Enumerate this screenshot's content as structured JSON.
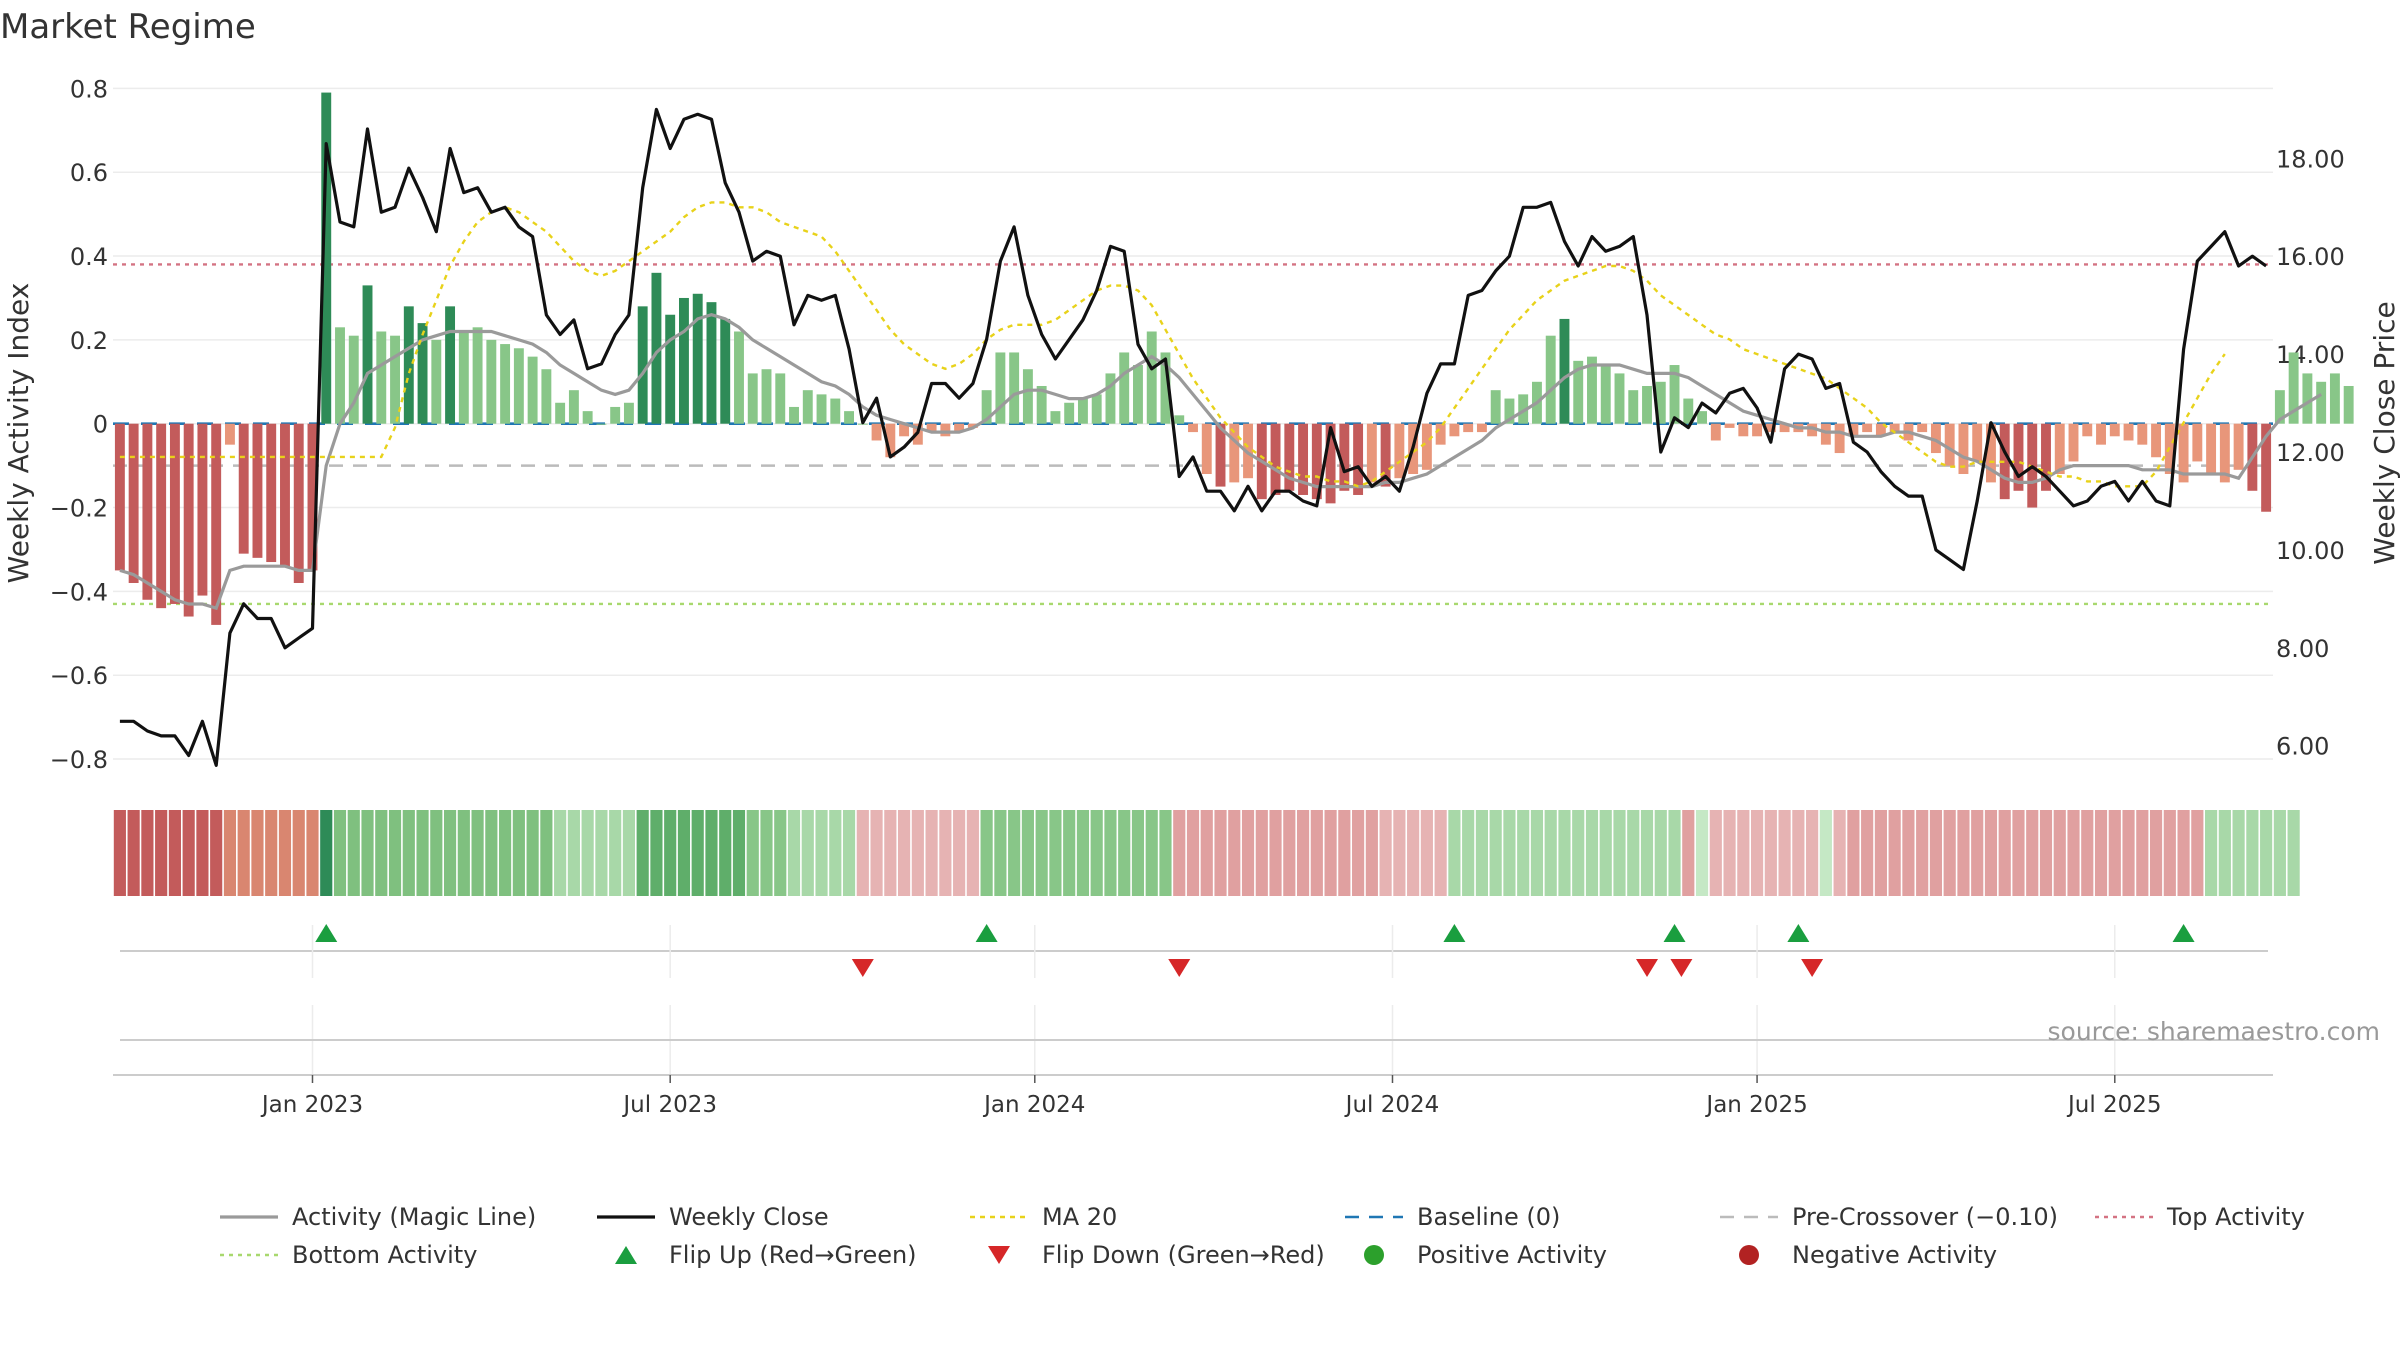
{
  "chart_data": {
    "type": "bar",
    "title": "Market Regime",
    "ylabel_left": "Weekly Activity Index",
    "ylabel_right": "Weekly Close Price",
    "ylim_left": [
      -0.85,
      0.82
    ],
    "ylim_right": [
      5.3,
      19.6
    ],
    "yticks_left": [
      {
        "value": 0.8,
        "label": "0.8"
      },
      {
        "value": 0.6,
        "label": "0.6"
      },
      {
        "value": 0.4,
        "label": "0.4"
      },
      {
        "value": 0.2,
        "label": "0.2"
      },
      {
        "value": 0,
        "label": "0"
      },
      {
        "value": -0.2,
        "label": "−0.2"
      },
      {
        "value": -0.4,
        "label": "−0.4"
      },
      {
        "value": -0.6,
        "label": "−0.6"
      },
      {
        "value": -0.8,
        "label": "−0.8"
      }
    ],
    "yticks_right": [
      {
        "value": 18,
        "label": "18.00"
      },
      {
        "value": 16,
        "label": "16.00"
      },
      {
        "value": 14,
        "label": "14.00"
      },
      {
        "value": 12,
        "label": "12.00"
      },
      {
        "value": 10,
        "label": "10.00"
      },
      {
        "value": 8,
        "label": "8.00"
      },
      {
        "value": 6,
        "label": "6.00"
      }
    ],
    "x_week_range": [
      0,
      157
    ],
    "xticks": [
      {
        "week": 14.5,
        "label": "Jan 2023"
      },
      {
        "week": 40.5,
        "label": "Jul 2023"
      },
      {
        "week": 67,
        "label": "Jan 2024"
      },
      {
        "week": 93,
        "label": "Jul 2024"
      },
      {
        "week": 119.5,
        "label": "Jan 2025"
      },
      {
        "week": 145.5,
        "label": "Jul 2025"
      }
    ],
    "weekly_activity": [
      -0.35,
      -0.38,
      -0.42,
      -0.44,
      -0.43,
      -0.46,
      -0.41,
      -0.48,
      -0.05,
      -0.31,
      -0.32,
      -0.33,
      -0.34,
      -0.38,
      -0.35,
      0.79,
      0.23,
      0.21,
      0.33,
      0.22,
      0.21,
      0.28,
      0.24,
      0.2,
      0.28,
      0.22,
      0.23,
      0.2,
      0.19,
      0.18,
      0.16,
      0.13,
      0.05,
      0.08,
      0.03,
      0,
      0.04,
      0.05,
      0.28,
      0.36,
      0.26,
      0.3,
      0.31,
      0.29,
      0.25,
      0.22,
      0.12,
      0.13,
      0.12,
      0.04,
      0.08,
      0.07,
      0.06,
      0.03,
      0,
      -0.04,
      -0.08,
      -0.03,
      -0.05,
      -0.02,
      -0.03,
      -0.02,
      -0.01,
      0.08,
      0.17,
      0.17,
      0.13,
      0.09,
      0.03,
      0.05,
      0.06,
      0.07,
      0.12,
      0.17,
      0.14,
      0.22,
      0.17,
      0.02,
      -0.02,
      -0.12,
      -0.15,
      -0.14,
      -0.13,
      -0.18,
      -0.17,
      -0.16,
      -0.17,
      -0.18,
      -0.19,
      -0.16,
      -0.17,
      -0.14,
      -0.15,
      -0.13,
      -0.12,
      -0.11,
      -0.05,
      -0.03,
      -0.02,
      -0.02,
      0.08,
      0.06,
      0.07,
      0.1,
      0.21,
      0.25,
      0.15,
      0.16,
      0.14,
      0.12,
      0.08,
      0.09,
      0.1,
      0.14,
      0.06,
      0.03,
      -0.04,
      -0.01,
      -0.03,
      -0.03,
      -0.02,
      -0.02,
      -0.02,
      -0.03,
      -0.05,
      -0.07,
      -0.03,
      -0.02,
      -0.03,
      -0.02,
      -0.04,
      -0.02,
      -0.07,
      -0.1,
      -0.12,
      -0.09,
      -0.14,
      -0.18,
      -0.16,
      -0.2,
      -0.16,
      -0.12,
      -0.09,
      -0.03,
      -0.05,
      -0.03,
      -0.04,
      -0.05,
      -0.08,
      -0.12,
      -0.14,
      -0.09,
      -0.12,
      -0.14,
      -0.11,
      -0.16,
      -0.21,
      0.08,
      0.17,
      0.12,
      0.1,
      0.12,
      0.09
    ],
    "magic_line": [
      -0.35,
      -0.36,
      -0.38,
      -0.4,
      -0.42,
      -0.43,
      -0.43,
      -0.44,
      -0.35,
      -0.34,
      -0.34,
      -0.34,
      -0.34,
      -0.35,
      -0.35,
      -0.1,
      0,
      0.05,
      0.12,
      0.14,
      0.16,
      0.18,
      0.2,
      0.21,
      0.22,
      0.22,
      0.22,
      0.22,
      0.21,
      0.2,
      0.19,
      0.17,
      0.14,
      0.12,
      0.1,
      0.08,
      0.07,
      0.08,
      0.12,
      0.17,
      0.2,
      0.22,
      0.25,
      0.26,
      0.25,
      0.23,
      0.2,
      0.18,
      0.16,
      0.14,
      0.12,
      0.1,
      0.09,
      0.07,
      0.04,
      0.02,
      0.01,
      0,
      -0.01,
      -0.02,
      -0.02,
      -0.02,
      -0.01,
      0.01,
      0.04,
      0.07,
      0.08,
      0.08,
      0.07,
      0.06,
      0.06,
      0.07,
      0.09,
      0.12,
      0.14,
      0.16,
      0.14,
      0.11,
      0.07,
      0.03,
      -0.01,
      -0.04,
      -0.07,
      -0.09,
      -0.11,
      -0.13,
      -0.14,
      -0.15,
      -0.15,
      -0.15,
      -0.15,
      -0.15,
      -0.14,
      -0.14,
      -0.13,
      -0.12,
      -0.1,
      -0.08,
      -0.06,
      -0.04,
      -0.01,
      0.01,
      0.03,
      0.05,
      0.08,
      0.11,
      0.13,
      0.14,
      0.14,
      0.14,
      0.13,
      0.12,
      0.12,
      0.12,
      0.11,
      0.09,
      0.07,
      0.05,
      0.03,
      0.02,
      0.01,
      0,
      -0.01,
      -0.01,
      -0.02,
      -0.02,
      -0.03,
      -0.03,
      -0.03,
      -0.02,
      -0.02,
      -0.03,
      -0.04,
      -0.06,
      -0.08,
      -0.09,
      -0.11,
      -0.13,
      -0.14,
      -0.14,
      -0.13,
      -0.11,
      -0.1,
      -0.1,
      -0.1,
      -0.1,
      -0.1,
      -0.11,
      -0.11,
      -0.11,
      -0.12,
      -0.12,
      -0.12,
      -0.12,
      -0.13,
      -0.08,
      -0.03,
      0.01,
      0.03,
      0.05,
      0.07
    ],
    "weekly_close": [
      6.5,
      6.5,
      6.3,
      6.2,
      6.2,
      5.8,
      6.5,
      5.6,
      8.3,
      8.9,
      8.6,
      8.6,
      8.0,
      8.2,
      8.4,
      18.3,
      16.7,
      16.6,
      18.6,
      16.9,
      17.0,
      17.8,
      17.2,
      16.5,
      18.2,
      17.3,
      17.4,
      16.9,
      17.0,
      16.6,
      16.4,
      14.8,
      14.4,
      14.7,
      13.7,
      13.8,
      14.4,
      14.8,
      17.4,
      19.0,
      18.2,
      18.8,
      18.9,
      18.8,
      17.5,
      16.9,
      15.9,
      16.1,
      16.0,
      14.6,
      15.2,
      15.1,
      15.2,
      14.1,
      12.6,
      13.1,
      11.9,
      12.1,
      12.4,
      13.4,
      13.4,
      13.1,
      13.4,
      14.3,
      15.9,
      16.6,
      15.2,
      14.4,
      13.9,
      14.3,
      14.7,
      15.3,
      16.2,
      16.1,
      14.2,
      13.7,
      13.9,
      11.5,
      11.9,
      11.2,
      11.2,
      10.8,
      11.3,
      10.8,
      11.2,
      11.2,
      11.0,
      10.9,
      12.5,
      11.6,
      11.7,
      11.3,
      11.5,
      11.2,
      12.1,
      13.2,
      13.8,
      13.8,
      15.2,
      15.3,
      15.7,
      16.0,
      17.0,
      17.0,
      17.1,
      16.3,
      15.8,
      16.4,
      16.1,
      16.2,
      16.4,
      14.8,
      12.0,
      12.7,
      12.5,
      13.0,
      12.8,
      13.2,
      13.3,
      12.9,
      12.2,
      13.7,
      14.0,
      13.9,
      13.3,
      13.4,
      12.2,
      12.0,
      11.6,
      11.3,
      11.1,
      11.1,
      10.0,
      9.8,
      9.6,
      11.0,
      12.6,
      12.0,
      11.5,
      11.7,
      11.5,
      11.2,
      10.9,
      11.0,
      11.3,
      11.4,
      11.0,
      11.4,
      11.0,
      10.9,
      14.1,
      15.9,
      16.2,
      16.5,
      15.8,
      16.0,
      15.8
    ],
    "ma20": [
      11.9,
      11.9,
      11.9,
      11.9,
      11.9,
      11.9,
      11.9,
      11.9,
      11.9,
      11.9,
      11.9,
      11.9,
      11.9,
      11.9,
      11.9,
      11.9,
      11.9,
      11.9,
      11.9,
      11.9,
      12.5,
      13.6,
      14.4,
      15.1,
      15.8,
      16.3,
      16.7,
      16.9,
      17.0,
      16.9,
      16.7,
      16.5,
      16.2,
      15.9,
      15.7,
      15.6,
      15.7,
      15.9,
      16.1,
      16.3,
      16.5,
      16.8,
      17.0,
      17.1,
      17.1,
      17.0,
      17.0,
      16.9,
      16.7,
      16.6,
      16.5,
      16.4,
      16.1,
      15.7,
      15.3,
      14.9,
      14.5,
      14.2,
      14.0,
      13.8,
      13.7,
      13.8,
      14.0,
      14.3,
      14.5,
      14.6,
      14.6,
      14.6,
      14.7,
      14.9,
      15.1,
      15.3,
      15.4,
      15.4,
      15.3,
      15.0,
      14.5,
      14.0,
      13.5,
      13.1,
      12.7,
      12.4,
      12.1,
      11.9,
      11.7,
      11.6,
      11.5,
      11.5,
      11.4,
      11.4,
      11.3,
      11.4,
      11.6,
      11.8,
      12.0,
      12.2,
      12.5,
      12.9,
      13.3,
      13.7,
      14.1,
      14.5,
      14.8,
      15.1,
      15.3,
      15.5,
      15.6,
      15.7,
      15.8,
      15.8,
      15.7,
      15.5,
      15.2,
      15.0,
      14.8,
      14.6,
      14.4,
      14.3,
      14.1,
      14.0,
      13.9,
      13.8,
      13.7,
      13.6,
      13.5,
      13.3,
      13.1,
      12.9,
      12.6,
      12.4,
      12.2,
      12.0,
      11.8,
      11.7,
      11.7,
      11.8,
      11.8,
      11.8,
      11.8,
      11.7,
      11.6,
      11.5,
      11.5,
      11.4,
      11.4,
      11.3,
      11.3,
      11.3,
      11.6,
      12.1,
      12.6,
      13.1,
      13.6,
      14.0
    ],
    "regime_colors": [
      "#c35b5b",
      "#c35b5b",
      "#c35b5b",
      "#c35b5b",
      "#c35b5b",
      "#c35b5b",
      "#c35b5b",
      "#c35b5b",
      "#d98670",
      "#d98670",
      "#d98670",
      "#d98670",
      "#d98670",
      "#d98670",
      "#d98670",
      "#2e8b57",
      "#7fc07f",
      "#7fc07f",
      "#7fc07f",
      "#7fc07f",
      "#7fc07f",
      "#7fc07f",
      "#7fc07f",
      "#7fc07f",
      "#7fc07f",
      "#7fc07f",
      "#7fc07f",
      "#7fc07f",
      "#7fc07f",
      "#7fc07f",
      "#7fc07f",
      "#7fc07f",
      "#a8d8a8",
      "#a8d8a8",
      "#a8d8a8",
      "#a8d8a8",
      "#a8d8a8",
      "#a8d8a8",
      "#5fae6a",
      "#5fae6a",
      "#5fae6a",
      "#5fae6a",
      "#5fae6a",
      "#5fae6a",
      "#5fae6a",
      "#5fae6a",
      "#88c688",
      "#88c688",
      "#88c688",
      "#a8d8a8",
      "#a8d8a8",
      "#a8d8a8",
      "#a8d8a8",
      "#a8d8a8",
      "#e6b3b3",
      "#e6b3b3",
      "#e6b3b3",
      "#e6b3b3",
      "#e6b3b3",
      "#e6b3b3",
      "#e6b3b3",
      "#e6b3b3",
      "#e6b3b3",
      "#88c688",
      "#88c688",
      "#88c688",
      "#88c688",
      "#88c688",
      "#88c688",
      "#88c688",
      "#88c688",
      "#88c688",
      "#88c688",
      "#88c688",
      "#88c688",
      "#88c688",
      "#88c688",
      "#e0a0a0",
      "#e0a0a0",
      "#e0a0a0",
      "#e0a0a0",
      "#e0a0a0",
      "#e0a0a0",
      "#e0a0a0",
      "#e0a0a0",
      "#e0a0a0",
      "#e0a0a0",
      "#e0a0a0",
      "#e0a0a0",
      "#e0a0a0",
      "#e0a0a0",
      "#e0a0a0",
      "#e6b3b3",
      "#e6b3b3",
      "#e6b3b3",
      "#e6b3b3",
      "#e6b3b3",
      "#a8d8a8",
      "#a8d8a8",
      "#a8d8a8",
      "#a8d8a8",
      "#a8d8a8",
      "#a8d8a8",
      "#a8d8a8",
      "#a8d8a8",
      "#a8d8a8",
      "#a8d8a8",
      "#a8d8a8",
      "#a8d8a8",
      "#a8d8a8",
      "#a8d8a8",
      "#a8d8a8",
      "#a8d8a8",
      "#a8d8a8",
      "#e0a0a0",
      "#c5e8c5",
      "#e6b3b3",
      "#e6b3b3",
      "#e6b3b3",
      "#e6b3b3",
      "#e6b3b3",
      "#e6b3b3",
      "#e6b3b3",
      "#e6b3b3",
      "#c5e8c5",
      "#e6b3b3",
      "#e0a0a0",
      "#e0a0a0",
      "#e0a0a0",
      "#e0a0a0",
      "#e0a0a0",
      "#e0a0a0",
      "#e0a0a0",
      "#e0a0a0",
      "#e0a0a0",
      "#e0a0a0",
      "#e0a0a0",
      "#e0a0a0",
      "#e0a0a0",
      "#e0a0a0",
      "#e0a0a0",
      "#e0a0a0",
      "#e0a0a0",
      "#e0a0a0",
      "#e0a0a0",
      "#e0a0a0",
      "#e0a0a0",
      "#e0a0a0",
      "#e0a0a0",
      "#e0a0a0",
      "#e0a0a0",
      "#e0a0a0",
      "#a8d8a8",
      "#a8d8a8",
      "#a8d8a8",
      "#a8d8a8",
      "#a8d8a8",
      "#a8d8a8",
      "#a8d8a8"
    ],
    "flip_up_weeks": [
      15,
      63,
      97,
      113,
      122,
      150
    ],
    "flip_down_weeks": [
      54,
      77,
      111,
      113.5,
      123
    ],
    "top_activity": 0.38,
    "bottom_activity": -0.43,
    "pre_crossover": -0.1,
    "baseline": 0,
    "source": "source: sharemaestro.com",
    "legend": [
      "Activity (Magic Line)",
      "Weekly Close",
      "MA 20",
      "Baseline (0)",
      "Pre-Crossover (−0.10)",
      "Top Activity",
      "Bottom Activity",
      "Flip Up (Red→Green)",
      "Flip Down (Green→Red)",
      "Positive Activity",
      "Negative Activity"
    ],
    "colors": {
      "pos_strong": "#2e8b57",
      "pos_light": "#88c688",
      "neg_strong": "#c35b5b",
      "neg_light": "#e8967a",
      "magic": "#9a9a9a",
      "close": "#111111",
      "ma20": "#e8d21a",
      "baseline": "#1f77b4",
      "pre": "#bbbbbb",
      "top": "#d47383",
      "bottom": "#a8d86e",
      "flip_up": "#1a9e3f",
      "flip_down": "#d62728",
      "pos_dot": "#2ca02c",
      "neg_dot": "#b22222"
    }
  }
}
